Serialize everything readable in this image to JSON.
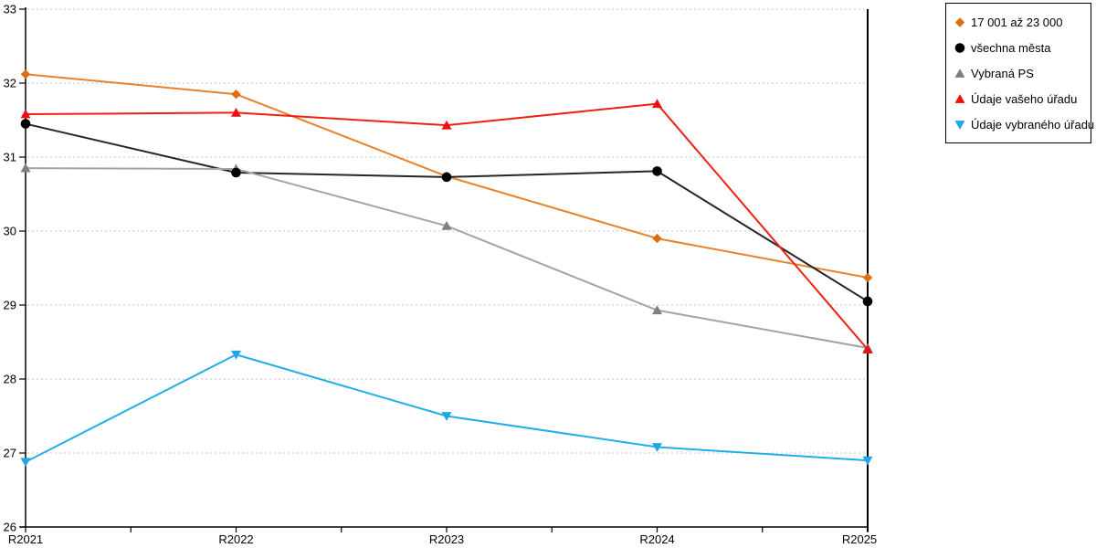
{
  "chart_data": {
    "type": "line",
    "title": "",
    "xlabel": "",
    "ylabel": "",
    "categories": [
      "R2021",
      "R2022",
      "R2023",
      "R2024",
      "R2025"
    ],
    "series": [
      {
        "name": "17 001 až 23 000",
        "marker": "diamond",
        "line_color": "#E8822A",
        "marker_color": "#DC6E0F",
        "values": [
          32.12,
          31.85,
          30.74,
          29.9,
          29.37
        ]
      },
      {
        "name": "všechna města",
        "marker": "circle",
        "line_color": "#262626",
        "marker_color": "#000000",
        "values": [
          31.45,
          30.79,
          30.73,
          30.81,
          29.05
        ]
      },
      {
        "name": "Vybraná PS",
        "marker": "triangle-up",
        "line_color": "#A3A3A3",
        "marker_color": "#7F7F7F",
        "values": [
          30.85,
          30.84,
          30.07,
          28.93,
          28.42
        ]
      },
      {
        "name": "Údaje vašeho úřadu",
        "marker": "triangle-up",
        "line_color": "#F02011",
        "marker_color": "#EE0E11",
        "values": [
          31.58,
          31.6,
          31.43,
          31.72,
          28.4
        ]
      },
      {
        "name": "Údaje vybraného úřadu",
        "marker": "triangle-down",
        "line_color": "#23AEE8",
        "marker_color": "#1FA7E4",
        "values": [
          26.88,
          28.33,
          27.5,
          27.08,
          26.9
        ]
      }
    ],
    "ylim": [
      26,
      33
    ],
    "ytick_step": 1,
    "yticks": [
      26,
      27,
      28,
      29,
      30,
      31,
      32,
      33
    ],
    "grid": "horizontal-dashed",
    "legend_position": "top-right"
  },
  "colors": {
    "background": "#FFFFFF",
    "axis": "#000000",
    "gridline": "#C6C6C6",
    "text": "#000000"
  }
}
